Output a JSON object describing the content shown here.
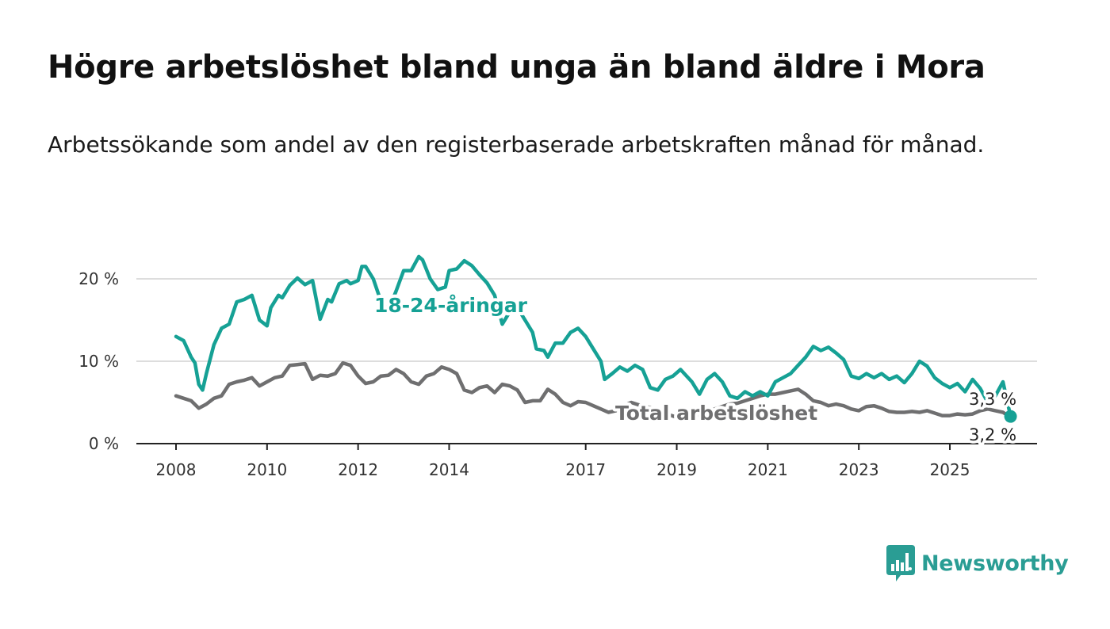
{
  "title": "Högre arbetslöshet bland unga än bland äldre i Mora",
  "subtitle": "Arbetssökande som andel av den registerbaserade arbetskraften månad för månad.",
  "brand": {
    "name": "Newsworthy",
    "color": "#2a9d94"
  },
  "chart_data": {
    "type": "line",
    "ylim": [
      0,
      25
    ],
    "y_ticks": [
      {
        "value": 0,
        "label": "0 %"
      },
      {
        "value": 10,
        "label": "10 %"
      },
      {
        "value": 20,
        "label": "20 %"
      }
    ],
    "x_ticks": [
      "2008",
      "2010",
      "2012",
      "2014",
      "2017",
      "2019",
      "2021",
      "2023",
      "2025"
    ],
    "xlim": [
      "2008-01",
      "2026-03"
    ],
    "grid": true,
    "series": [
      {
        "name": "18-24-åringar",
        "color": "#16a195",
        "end_label": "3,3 %",
        "points": [
          [
            "2008-01",
            13.0
          ],
          [
            "2008-03",
            12.5
          ],
          [
            "2008-05",
            10.5
          ],
          [
            "2008-06",
            9.8
          ],
          [
            "2008-07",
            7.2
          ],
          [
            "2008-08",
            6.5
          ],
          [
            "2008-09",
            8.5
          ],
          [
            "2008-11",
            12.0
          ],
          [
            "2009-01",
            14.0
          ],
          [
            "2009-03",
            14.5
          ],
          [
            "2009-05",
            17.2
          ],
          [
            "2009-07",
            17.5
          ],
          [
            "2009-09",
            18.0
          ],
          [
            "2009-11",
            15.0
          ],
          [
            "2010-01",
            14.3
          ],
          [
            "2010-02",
            16.5
          ],
          [
            "2010-04",
            18.0
          ],
          [
            "2010-05",
            17.7
          ],
          [
            "2010-07",
            19.2
          ],
          [
            "2010-09",
            20.1
          ],
          [
            "2010-11",
            19.3
          ],
          [
            "2011-01",
            19.8
          ],
          [
            "2011-03",
            15.1
          ],
          [
            "2011-05",
            17.5
          ],
          [
            "2011-06",
            17.2
          ],
          [
            "2011-08",
            19.4
          ],
          [
            "2011-10",
            19.8
          ],
          [
            "2011-11",
            19.4
          ],
          [
            "2012-01",
            19.8
          ],
          [
            "2012-02",
            21.5
          ],
          [
            "2012-03",
            21.5
          ],
          [
            "2012-05",
            20.0
          ],
          [
            "2012-07",
            17.3
          ],
          [
            "2012-09",
            16.2
          ],
          [
            "2012-11",
            18.5
          ],
          [
            "2013-01",
            21.0
          ],
          [
            "2013-03",
            21.0
          ],
          [
            "2013-05",
            22.7
          ],
          [
            "2013-06",
            22.3
          ],
          [
            "2013-08",
            20.0
          ],
          [
            "2013-10",
            18.7
          ],
          [
            "2013-12",
            19.0
          ],
          [
            "2014-01",
            21.0
          ],
          [
            "2014-03",
            21.2
          ],
          [
            "2014-05",
            22.2
          ],
          [
            "2014-07",
            21.6
          ],
          [
            "2014-09",
            20.5
          ],
          [
            "2014-11",
            19.5
          ],
          [
            "2015-01",
            18.0
          ],
          [
            "2015-03",
            14.5
          ],
          [
            "2015-05",
            16.0
          ],
          [
            "2015-07",
            16.5
          ],
          [
            "2015-09",
            15.0
          ],
          [
            "2015-11",
            13.5
          ],
          [
            "2015-12",
            11.5
          ],
          [
            "2016-02",
            11.3
          ],
          [
            "2016-03",
            10.5
          ],
          [
            "2016-05",
            12.2
          ],
          [
            "2016-07",
            12.2
          ],
          [
            "2016-09",
            13.5
          ],
          [
            "2016-11",
            14.0
          ],
          [
            "2017-01",
            13.0
          ],
          [
            "2017-03",
            11.5
          ],
          [
            "2017-05",
            10.0
          ],
          [
            "2017-06",
            7.8
          ],
          [
            "2017-08",
            8.5
          ],
          [
            "2017-10",
            9.3
          ],
          [
            "2017-12",
            8.8
          ],
          [
            "2018-02",
            9.5
          ],
          [
            "2018-04",
            9.0
          ],
          [
            "2018-06",
            6.8
          ],
          [
            "2018-08",
            6.5
          ],
          [
            "2018-10",
            7.8
          ],
          [
            "2018-12",
            8.2
          ],
          [
            "2019-02",
            9.0
          ],
          [
            "2019-03",
            8.5
          ],
          [
            "2019-05",
            7.5
          ],
          [
            "2019-07",
            6.0
          ],
          [
            "2019-09",
            7.8
          ],
          [
            "2019-11",
            8.5
          ],
          [
            "2020-01",
            7.5
          ],
          [
            "2020-03",
            5.8
          ],
          [
            "2020-05",
            5.5
          ],
          [
            "2020-07",
            6.3
          ],
          [
            "2020-09",
            5.8
          ],
          [
            "2020-11",
            6.3
          ],
          [
            "2021-01",
            5.8
          ],
          [
            "2021-03",
            7.5
          ],
          [
            "2021-05",
            8.0
          ],
          [
            "2021-07",
            8.5
          ],
          [
            "2021-09",
            9.5
          ],
          [
            "2021-11",
            10.5
          ],
          [
            "2022-01",
            11.8
          ],
          [
            "2022-03",
            11.3
          ],
          [
            "2022-05",
            11.7
          ],
          [
            "2022-07",
            11.0
          ],
          [
            "2022-09",
            10.2
          ],
          [
            "2022-11",
            8.2
          ],
          [
            "2023-01",
            7.9
          ],
          [
            "2023-03",
            8.5
          ],
          [
            "2023-05",
            8.0
          ],
          [
            "2023-07",
            8.5
          ],
          [
            "2023-09",
            7.8
          ],
          [
            "2023-11",
            8.2
          ],
          [
            "2024-01",
            7.4
          ],
          [
            "2024-03",
            8.5
          ],
          [
            "2024-05",
            10.0
          ],
          [
            "2024-07",
            9.4
          ],
          [
            "2024-09",
            8.0
          ],
          [
            "2024-11",
            7.3
          ],
          [
            "2025-01",
            6.8
          ],
          [
            "2025-03",
            7.3
          ],
          [
            "2025-05",
            6.3
          ],
          [
            "2025-07",
            7.8
          ],
          [
            "2025-09",
            6.7
          ],
          [
            "2025-11",
            5.0
          ],
          [
            "2026-01",
            5.8
          ],
          [
            "2026-03",
            7.5
          ],
          [
            "2026-05",
            3.3
          ]
        ]
      },
      {
        "name": "Total arbetslöshet",
        "color": "#6f6f70",
        "end_label": "3,2 %",
        "points": [
          [
            "2008-01",
            5.8
          ],
          [
            "2008-03",
            5.5
          ],
          [
            "2008-05",
            5.2
          ],
          [
            "2008-07",
            4.3
          ],
          [
            "2008-09",
            4.8
          ],
          [
            "2008-11",
            5.5
          ],
          [
            "2009-01",
            5.8
          ],
          [
            "2009-03",
            7.2
          ],
          [
            "2009-05",
            7.5
          ],
          [
            "2009-07",
            7.7
          ],
          [
            "2009-09",
            8.0
          ],
          [
            "2009-11",
            7.0
          ],
          [
            "2010-01",
            7.5
          ],
          [
            "2010-03",
            8.0
          ],
          [
            "2010-05",
            8.2
          ],
          [
            "2010-07",
            9.5
          ],
          [
            "2010-09",
            9.6
          ],
          [
            "2010-11",
            9.7
          ],
          [
            "2011-01",
            7.8
          ],
          [
            "2011-03",
            8.3
          ],
          [
            "2011-05",
            8.2
          ],
          [
            "2011-07",
            8.5
          ],
          [
            "2011-09",
            9.8
          ],
          [
            "2011-11",
            9.5
          ],
          [
            "2012-01",
            8.2
          ],
          [
            "2012-03",
            7.3
          ],
          [
            "2012-05",
            7.5
          ],
          [
            "2012-07",
            8.2
          ],
          [
            "2012-09",
            8.3
          ],
          [
            "2012-11",
            9.0
          ],
          [
            "2013-01",
            8.5
          ],
          [
            "2013-03",
            7.5
          ],
          [
            "2013-05",
            7.2
          ],
          [
            "2013-07",
            8.2
          ],
          [
            "2013-09",
            8.5
          ],
          [
            "2013-11",
            9.3
          ],
          [
            "2014-01",
            9.0
          ],
          [
            "2014-03",
            8.5
          ],
          [
            "2014-05",
            6.5
          ],
          [
            "2014-07",
            6.2
          ],
          [
            "2014-09",
            6.8
          ],
          [
            "2014-11",
            7.0
          ],
          [
            "2015-01",
            6.2
          ],
          [
            "2015-03",
            7.2
          ],
          [
            "2015-05",
            7.0
          ],
          [
            "2015-07",
            6.5
          ],
          [
            "2015-09",
            5.0
          ],
          [
            "2015-11",
            5.2
          ],
          [
            "2016-01",
            5.2
          ],
          [
            "2016-03",
            6.6
          ],
          [
            "2016-05",
            6.0
          ],
          [
            "2016-07",
            5.0
          ],
          [
            "2016-09",
            4.6
          ],
          [
            "2016-11",
            5.1
          ],
          [
            "2017-01",
            5.0
          ],
          [
            "2017-03",
            4.6
          ],
          [
            "2017-05",
            4.2
          ],
          [
            "2017-07",
            3.8
          ],
          [
            "2017-09",
            4.0
          ],
          [
            "2017-11",
            4.6
          ],
          [
            "2018-01",
            5.0
          ],
          [
            "2018-03",
            4.7
          ],
          [
            "2018-05",
            4.5
          ],
          [
            "2018-07",
            4.2
          ],
          [
            "2018-09",
            3.8
          ],
          [
            "2018-11",
            3.5
          ],
          [
            "2019-01",
            3.2
          ],
          [
            "2019-03",
            3.0
          ],
          [
            "2019-05",
            3.3
          ],
          [
            "2019-07",
            3.5
          ],
          [
            "2019-09",
            3.8
          ],
          [
            "2019-11",
            4.2
          ],
          [
            "2020-01",
            4.5
          ],
          [
            "2020-03",
            4.8
          ],
          [
            "2020-05",
            4.9
          ],
          [
            "2020-07",
            5.2
          ],
          [
            "2020-09",
            5.5
          ],
          [
            "2020-11",
            5.8
          ],
          [
            "2021-01",
            6.0
          ],
          [
            "2021-03",
            6.0
          ],
          [
            "2021-05",
            6.2
          ],
          [
            "2021-07",
            6.4
          ],
          [
            "2021-09",
            6.6
          ],
          [
            "2021-11",
            6.0
          ],
          [
            "2022-01",
            5.2
          ],
          [
            "2022-03",
            5.0
          ],
          [
            "2022-05",
            4.6
          ],
          [
            "2022-07",
            4.8
          ],
          [
            "2022-09",
            4.6
          ],
          [
            "2022-11",
            4.2
          ],
          [
            "2023-01",
            4.0
          ],
          [
            "2023-03",
            4.5
          ],
          [
            "2023-05",
            4.6
          ],
          [
            "2023-07",
            4.3
          ],
          [
            "2023-09",
            3.9
          ],
          [
            "2023-11",
            3.8
          ],
          [
            "2024-01",
            3.8
          ],
          [
            "2024-03",
            3.9
          ],
          [
            "2024-05",
            3.8
          ],
          [
            "2024-07",
            4.0
          ],
          [
            "2024-09",
            3.7
          ],
          [
            "2024-11",
            3.4
          ],
          [
            "2025-01",
            3.4
          ],
          [
            "2025-03",
            3.6
          ],
          [
            "2025-05",
            3.5
          ],
          [
            "2025-07",
            3.6
          ],
          [
            "2025-09",
            4.0
          ],
          [
            "2025-11",
            4.2
          ],
          [
            "2026-01",
            4.0
          ],
          [
            "2026-03",
            3.8
          ],
          [
            "2026-05",
            3.2
          ]
        ]
      }
    ]
  }
}
